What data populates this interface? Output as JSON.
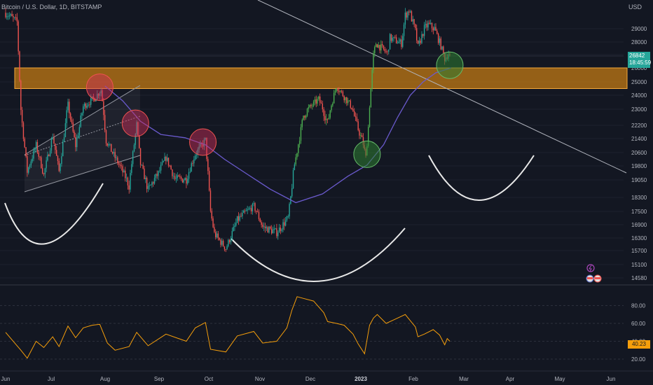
{
  "header": {
    "symbol_line": "Bitcoin / U.S. Dollar, 1D, BITSTAMP",
    "currency": "USD"
  },
  "price_badge": {
    "price": "26842",
    "countdown": "18:45:59"
  },
  "osc_badge": {
    "value": "40.23"
  },
  "colors": {
    "up": "#26a69a",
    "upBright": "#4caf50",
    "down": "#ef5350",
    "ma": "#6a5acd",
    "zone": "#c77d14",
    "osc": "#f59e0b",
    "bg": "#131722"
  },
  "chart_data": [
    {
      "type": "candlestick",
      "title": "",
      "x_ticks": [
        "Jun",
        "Jul",
        "Aug",
        "Sep",
        "Oct",
        "Nov",
        "Dec",
        "2023",
        "Feb",
        "Mar",
        "Apr",
        "May",
        "Jun"
      ],
      "y_ticks": [
        29000,
        28000,
        27000,
        26000,
        25000,
        24000,
        23000,
        22200,
        21400,
        20600,
        19800,
        19050,
        18300,
        17500,
        16900,
        16300,
        15700,
        15100,
        14580
      ],
      "y_tick_labels": [
        "29000",
        "28000",
        "27000",
        "26000",
        "25000",
        "24000",
        "23000",
        "22200",
        "21400",
        "20600",
        "19800",
        "19050",
        "18300",
        "17500",
        "16900",
        "16300",
        "15700",
        "15100",
        "14580"
      ],
      "ylim": [
        14300,
        30500
      ],
      "last_price": 26842,
      "resistance_zone": [
        24500,
        26000
      ],
      "price_path": [
        [
          "2022-06-01",
          30200
        ],
        [
          "2022-06-10",
          29500
        ],
        [
          "2022-06-13",
          23000
        ],
        [
          "2022-06-18",
          19500
        ],
        [
          "2022-06-25",
          21000
        ],
        [
          "2022-07-01",
          19300
        ],
        [
          "2022-07-08",
          21600
        ],
        [
          "2022-07-13",
          19500
        ],
        [
          "2022-07-20",
          23300
        ],
        [
          "2022-07-26",
          21000
        ],
        [
          "2022-08-01",
          23200
        ],
        [
          "2022-08-10",
          23800
        ],
        [
          "2022-08-15",
          24400
        ],
        [
          "2022-08-19",
          21300
        ],
        [
          "2022-08-26",
          20300
        ],
        [
          "2022-09-06",
          18800
        ],
        [
          "2022-09-12",
          22200
        ],
        [
          "2022-09-15",
          19900
        ],
        [
          "2022-09-21",
          18600
        ],
        [
          "2022-09-29",
          19400
        ],
        [
          "2022-10-05",
          20300
        ],
        [
          "2022-10-12",
          19100
        ],
        [
          "2022-10-21",
          19100
        ],
        [
          "2022-10-28",
          20500
        ],
        [
          "2022-11-05",
          21300
        ],
        [
          "2022-11-09",
          17500
        ],
        [
          "2022-11-12",
          16500
        ],
        [
          "2022-11-21",
          15800
        ],
        [
          "2022-11-30",
          17100
        ],
        [
          "2022-12-13",
          17800
        ],
        [
          "2022-12-20",
          16800
        ],
        [
          "2022-12-31",
          16550
        ],
        [
          "2023-01-09",
          17200
        ],
        [
          "2023-01-14",
          19900
        ],
        [
          "2023-01-21",
          22700
        ],
        [
          "2023-02-02",
          23700
        ],
        [
          "2023-02-09",
          22300
        ],
        [
          "2023-02-16",
          24700
        ],
        [
          "2023-02-22",
          23900
        ],
        [
          "2023-02-28",
          23150
        ],
        [
          "2023-03-03",
          22400
        ],
        [
          "2023-03-09",
          21100
        ],
        [
          "2023-03-11",
          20300
        ],
        [
          "2023-03-13",
          22100
        ],
        [
          "2023-03-17",
          26900
        ],
        [
          "2023-03-19",
          27900
        ],
        [
          "2023-03-28",
          27100
        ],
        [
          "2023-03-30",
          28300
        ],
        [
          "2023-04-08",
          27900
        ],
        [
          "2023-04-11",
          30000
        ],
        [
          "2023-04-14",
          30400
        ],
        [
          "2023-04-19",
          28800
        ],
        [
          "2023-04-21",
          27600
        ],
        [
          "2023-04-26",
          29000
        ],
        [
          "2023-04-29",
          29300
        ],
        [
          "2023-05-04",
          29000
        ],
        [
          "2023-05-09",
          27700
        ],
        [
          "2023-05-12",
          26700
        ],
        [
          "2023-05-15",
          27100
        ],
        [
          "2023-05-16",
          26842
        ]
      ],
      "moving_average": [
        [
          "2022-08-18",
          24700
        ],
        [
          "2022-09-01",
          23600
        ],
        [
          "2022-09-15",
          22400
        ],
        [
          "2022-10-01",
          21650
        ],
        [
          "2022-10-20",
          21450
        ],
        [
          "2022-11-05",
          21050
        ],
        [
          "2022-11-20",
          20200
        ],
        [
          "2022-12-08",
          19350
        ],
        [
          "2022-12-26",
          18650
        ],
        [
          "2023-01-15",
          18000
        ],
        [
          "2023-02-05",
          18450
        ],
        [
          "2023-02-25",
          19250
        ],
        [
          "2023-03-12",
          19850
        ],
        [
          "2023-03-25",
          21050
        ],
        [
          "2023-04-05",
          22600
        ],
        [
          "2023-04-15",
          24000
        ],
        [
          "2023-04-25",
          25000
        ],
        [
          "2023-05-05",
          25650
        ],
        [
          "2023-05-17",
          26000
        ]
      ],
      "marked_circles": [
        {
          "date": "2022-08-14",
          "price": 24600,
          "color": "red"
        },
        {
          "date": "2022-09-11",
          "price": 22300,
          "color": "red"
        },
        {
          "date": "2022-11-03",
          "price": 21200,
          "color": "red"
        },
        {
          "date": "2023-03-12",
          "price": 20500,
          "color": "green"
        },
        {
          "date": "2023-05-16",
          "price": 26200,
          "color": "green"
        }
      ]
    },
    {
      "type": "line",
      "title": "",
      "y_ticks": [
        80,
        60,
        40,
        20
      ],
      "y_tick_labels": [
        "80.00",
        "60.00",
        "40.00",
        "20.00"
      ],
      "ylim": [
        17,
        96
      ],
      "last_value": 40.23,
      "series": [
        {
          "values": [
            [
              "2022-06-01",
              50
            ],
            [
              "2022-06-13",
              30
            ],
            [
              "2022-06-18",
              21
            ],
            [
              "2022-06-25",
              40
            ],
            [
              "2022-07-01",
              33
            ],
            [
              "2022-07-08",
              45
            ],
            [
              "2022-07-13",
              34
            ],
            [
              "2022-07-20",
              57
            ],
            [
              "2022-07-26",
              44
            ],
            [
              "2022-08-01",
              55
            ],
            [
              "2022-08-08",
              58
            ],
            [
              "2022-08-14",
              59
            ],
            [
              "2022-08-20",
              38
            ],
            [
              "2022-08-26",
              30
            ],
            [
              "2022-09-06",
              34
            ],
            [
              "2022-09-12",
              50
            ],
            [
              "2022-09-21",
              35
            ],
            [
              "2022-10-05",
              48
            ],
            [
              "2022-10-21",
              40
            ],
            [
              "2022-10-28",
              55
            ],
            [
              "2022-11-05",
              61
            ],
            [
              "2022-11-09",
              31
            ],
            [
              "2022-11-21",
              28
            ],
            [
              "2022-11-30",
              46
            ],
            [
              "2022-12-13",
              51
            ],
            [
              "2022-12-20",
              38
            ],
            [
              "2022-12-31",
              40
            ],
            [
              "2023-01-08",
              55
            ],
            [
              "2023-01-12",
              75
            ],
            [
              "2023-01-16",
              90
            ],
            [
              "2023-01-21",
              88
            ],
            [
              "2023-01-29",
              85
            ],
            [
              "2023-02-06",
              72
            ],
            [
              "2023-02-09",
              62
            ],
            [
              "2023-02-16",
              60
            ],
            [
              "2023-02-22",
              58
            ],
            [
              "2023-03-01",
              48
            ],
            [
              "2023-03-05",
              37
            ],
            [
              "2023-03-10",
              26
            ],
            [
              "2023-03-14",
              58
            ],
            [
              "2023-03-17",
              66
            ],
            [
              "2023-03-20",
              70
            ],
            [
              "2023-03-27",
              60
            ],
            [
              "2023-04-02",
              64
            ],
            [
              "2023-04-11",
              70
            ],
            [
              "2023-04-19",
              56
            ],
            [
              "2023-04-21",
              45
            ],
            [
              "2023-04-26",
              48
            ],
            [
              "2023-05-03",
              53
            ],
            [
              "2023-05-08",
              47
            ],
            [
              "2023-05-12",
              36
            ],
            [
              "2023-05-14",
              43
            ],
            [
              "2023-05-16",
              40
            ]
          ]
        }
      ]
    }
  ]
}
